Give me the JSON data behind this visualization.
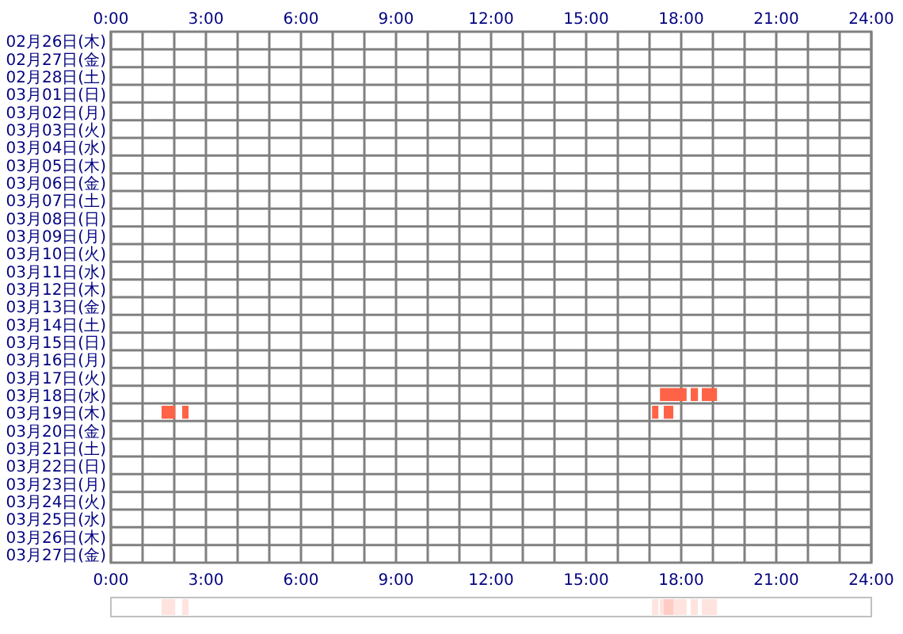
{
  "chart_data": {
    "type": "bar",
    "orientation": "horizontal",
    "grid": true,
    "categories": [
      "02月26日(木)",
      "02月27日(金)",
      "02月28日(土)",
      "03月01日(日)",
      "03月02日(月)",
      "03月03日(火)",
      "03月04日(水)",
      "03月05日(木)",
      "03月06日(金)",
      "03月07日(土)",
      "03月08日(日)",
      "03月09日(月)",
      "03月10日(火)",
      "03月11日(水)",
      "03月12日(木)",
      "03月13日(金)",
      "03月14日(土)",
      "03月15日(日)",
      "03月16日(月)",
      "03月17日(火)",
      "03月18日(水)",
      "03月19日(木)",
      "03月20日(金)",
      "03月21日(土)",
      "03月22日(日)",
      "03月23日(月)",
      "03月24日(火)",
      "03月25日(水)",
      "03月26日(木)",
      "03月27日(金)"
    ],
    "series": [
      {
        "color": "#ff6347",
        "values": [
          null,
          null,
          null,
          null,
          null,
          null,
          null,
          null,
          null,
          null,
          null,
          null,
          null,
          null,
          null,
          null,
          null,
          null,
          null,
          null,
          0.84,
          0.43,
          null,
          null,
          null,
          null,
          null,
          null,
          null,
          null
        ],
        "base": [
          null,
          null,
          null,
          null,
          null,
          null,
          null,
          null,
          null,
          null,
          null,
          null,
          null,
          null,
          null,
          null,
          null,
          null,
          null,
          null,
          17.33,
          1.6,
          null,
          null,
          null,
          null,
          null,
          null,
          null,
          null
        ]
      },
      {
        "color": "#ff6347",
        "values": [
          null,
          null,
          null,
          null,
          null,
          null,
          null,
          null,
          null,
          null,
          null,
          null,
          null,
          null,
          null,
          null,
          null,
          null,
          null,
          null,
          0.23,
          0.2,
          null,
          null,
          null,
          null,
          null,
          null,
          null,
          null
        ],
        "base": [
          null,
          null,
          null,
          null,
          null,
          null,
          null,
          null,
          null,
          null,
          null,
          null,
          null,
          null,
          null,
          null,
          null,
          null,
          null,
          null,
          18.3,
          2.25,
          null,
          null,
          null,
          null,
          null,
          null,
          null,
          null
        ]
      },
      {
        "color": "#ff6347",
        "values": [
          null,
          null,
          null,
          null,
          null,
          null,
          null,
          null,
          null,
          null,
          null,
          null,
          null,
          null,
          null,
          null,
          null,
          null,
          null,
          null,
          0.48,
          0.2,
          null,
          null,
          null,
          null,
          null,
          null,
          null,
          null
        ],
        "base": [
          null,
          null,
          null,
          null,
          null,
          null,
          null,
          null,
          null,
          null,
          null,
          null,
          null,
          null,
          null,
          null,
          null,
          null,
          null,
          null,
          18.65,
          17.08,
          null,
          null,
          null,
          null,
          null,
          null,
          null,
          null
        ]
      },
      {
        "color": "#ff6347",
        "values": [
          null,
          null,
          null,
          null,
          null,
          null,
          null,
          null,
          null,
          null,
          null,
          null,
          null,
          null,
          null,
          null,
          null,
          null,
          null,
          null,
          null,
          0.3,
          null,
          null,
          null,
          null,
          null,
          null,
          null,
          null
        ],
        "base": [
          null,
          null,
          null,
          null,
          null,
          null,
          null,
          null,
          null,
          null,
          null,
          null,
          null,
          null,
          null,
          null,
          null,
          null,
          null,
          null,
          null,
          17.45,
          null,
          null,
          null,
          null,
          null,
          null,
          null,
          null
        ]
      }
    ],
    "xlim": [
      0,
      24
    ],
    "xticks": [
      {
        "value": 0,
        "label": "0:00"
      },
      {
        "value": 1,
        "label": null
      },
      {
        "value": 2,
        "label": null
      },
      {
        "value": 3,
        "label": "3:00"
      },
      {
        "value": 4,
        "label": null
      },
      {
        "value": 5,
        "label": null
      },
      {
        "value": 6,
        "label": "6:00"
      },
      {
        "value": 7,
        "label": null
      },
      {
        "value": 8,
        "label": null
      },
      {
        "value": 9,
        "label": "9:00"
      },
      {
        "value": 10,
        "label": null
      },
      {
        "value": 11,
        "label": null
      },
      {
        "value": 12,
        "label": "12:00"
      },
      {
        "value": 13,
        "label": null
      },
      {
        "value": 14,
        "label": null
      },
      {
        "value": 15,
        "label": "15:00"
      },
      {
        "value": 16,
        "label": null
      },
      {
        "value": 17,
        "label": null
      },
      {
        "value": 18,
        "label": "18:00"
      },
      {
        "value": 19,
        "label": null
      },
      {
        "value": 20,
        "label": null
      },
      {
        "value": 21,
        "label": "21:00"
      },
      {
        "value": 22,
        "label": null
      },
      {
        "value": 23,
        "label": null
      },
      {
        "value": 24,
        "label": "24:00"
      }
    ],
    "x2lim": [
      0,
      24
    ],
    "x2ticks": [
      {
        "value": 0,
        "label": "0:00"
      },
      {
        "value": 1,
        "label": null
      },
      {
        "value": 2,
        "label": null
      },
      {
        "value": 3,
        "label": "3:00"
      },
      {
        "value": 4,
        "label": null
      },
      {
        "value": 5,
        "label": null
      },
      {
        "value": 6,
        "label": "6:00"
      },
      {
        "value": 7,
        "label": null
      },
      {
        "value": 8,
        "label": null
      },
      {
        "value": 9,
        "label": "9:00"
      },
      {
        "value": 10,
        "label": null
      },
      {
        "value": 11,
        "label": null
      },
      {
        "value": 12,
        "label": "12:00"
      },
      {
        "value": 13,
        "label": null
      },
      {
        "value": 14,
        "label": null
      },
      {
        "value": 15,
        "label": "15:00"
      },
      {
        "value": 16,
        "label": null
      },
      {
        "value": 17,
        "label": null
      },
      {
        "value": 18,
        "label": "18:00"
      },
      {
        "value": 19,
        "label": null
      },
      {
        "value": 20,
        "label": null
      },
      {
        "value": 21,
        "label": "21:00"
      },
      {
        "value": 22,
        "label": null
      },
      {
        "value": 23,
        "label": null
      },
      {
        "value": 24,
        "label": "24:00"
      }
    ]
  }
}
